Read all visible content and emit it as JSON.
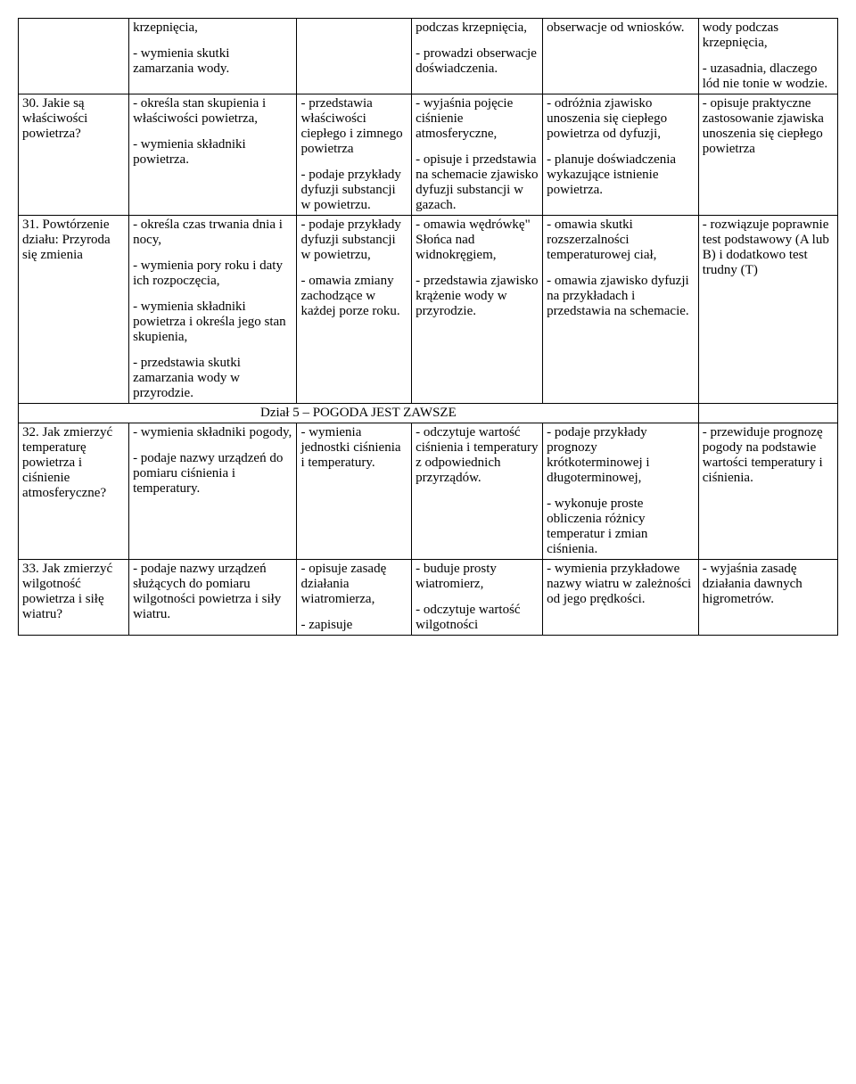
{
  "rows": [
    {
      "c0": "",
      "c1": "krzepnięcia,\n\n- wymienia skutki zamarzania wody.",
      "c2": "",
      "c3": "podczas krzepnięcia,\n\n- prowadzi obserwacje doświadczenia.",
      "c4": "obserwacje od wniosków.",
      "c5": "wody podczas krzepnięcia,\n\n- uzasadnia, dlaczego lód nie tonie w wodzie."
    },
    {
      "c0": "30. Jakie są właściwości powietrza?",
      "c1": "- określa stan skupienia         i właściwości powietrza,\n\n- wymienia składniki powietrza.",
      "c2": "- przedstawia właściwości ciepłego i zimnego powietrza\n\n- podaje przykłady dyfuzji substancji w powietrzu.",
      "c3": "- wyjaśnia pojęcie ciśnienie atmosferyczne,\n\n- opisuje i przedstawia na schemacie zjawisko dyfuzji substancji w gazach.",
      "c4": "- odróżnia zjawisko unoszenia się ciepłego powietrza od dyfuzji,\n\n- planuje doświadczenia wykazujące istnienie powietrza.",
      "c5": "- opisuje praktyczne zastosowanie zjawiska unoszenia się ciepłego powietrza"
    },
    {
      "c0": "31. Powtórzenie działu: Przyroda się zmienia",
      "c1": "- określa czas trwania dnia i nocy,\n\n- wymienia pory roku i daty ich rozpoczęcia,\n\n- wymienia składniki powietrza i określa jego stan skupienia,\n\n- przedstawia skutki zamarzania wody w przyrodzie.",
      "c2": "- podaje przykłady dyfuzji substancji w powietrzu,\n\n- omawia zmiany zachodzące w każdej porze roku.",
      "c3": "- omawia wędrówkę\" Słońca nad widnokręgiem,\n\n- przedstawia zjawisko krążenie wody w przyrodzie.",
      "c4": "- omawia skutki rozszerzalności temperaturowej ciał,\n\n- omawia zjawisko dyfuzji na przykładach i przedstawia na schemacie.",
      "c5": "- rozwiązuje poprawnie test podstawowy (A lub B) i dodatkowo test trudny (T)"
    }
  ],
  "section_title": "Dział 5 – POGODA JEST ZAWSZE",
  "rows2": [
    {
      "c0": "32. Jak zmierzyć temperaturę powietrza i ciśnienie atmosferyczne?",
      "c1": "- wymienia składniki pogody,\n\n- podaje nazwy urządzeń do pomiaru ciśnienia             i temperatury.",
      "c2": "- wymienia jednostki ciśnienia i temperatury.",
      "c3": "- odczytuje wartość ciśnienia        i temperatury z odpowiednich przyrządów.",
      "c4": "- podaje przykłady prognozy krótkoterminowej i długoterminowej,\n\n- wykonuje proste obliczenia różnicy temperatur i zmian ciśnienia.",
      "c5": "- przewiduje prognozę pogody na podstawie wartości temperatury i ciśnienia."
    },
    {
      "c0": "33. Jak zmierzyć wilgotność powietrza i siłę wiatru?",
      "c1": "- podaje nazwy urządzeń służących do pomiaru wilgotności powietrza             i siły wiatru.",
      "c2": "- opisuje zasadę działania wiatromierza,\n\n- zapisuje",
      "c3": "- buduje prosty wiatromierz,\n\n- odczytuje wartość wilgotności",
      "c4": "- wymienia przykładowe nazwy wiatru w zależności od jego prędkości.",
      "c5": "- wyjaśnia zasadę działania dawnych higrometrów."
    }
  ]
}
